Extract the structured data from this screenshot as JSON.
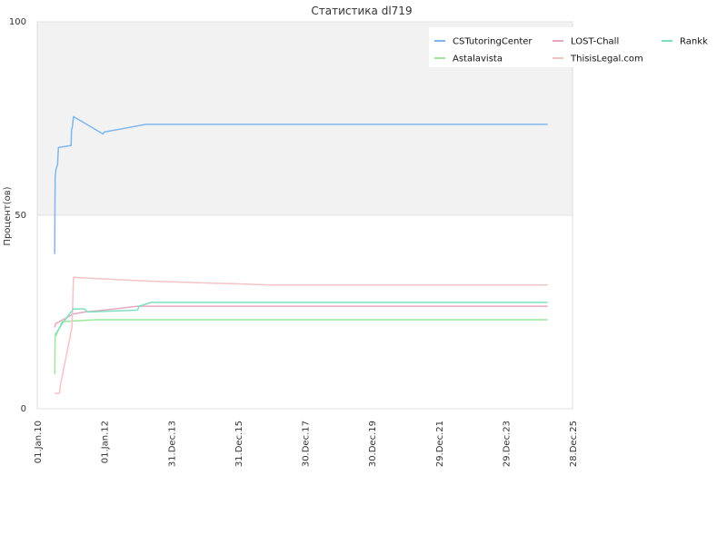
{
  "chart_data": {
    "type": "line",
    "title": "Статистика dl719",
    "ylabel": "Процент(ов)",
    "ylim": [
      0,
      100
    ],
    "yticks": [
      "0",
      "50",
      "100"
    ],
    "xlim": [
      "2010-01-01",
      "2025-12-28"
    ],
    "xticks": [
      {
        "date": "2010-01-01",
        "label": "01.Jan.10"
      },
      {
        "date": "2012-01-01",
        "label": "01.Jan.12"
      },
      {
        "date": "2013-12-31",
        "label": "31.Dec.13"
      },
      {
        "date": "2015-12-31",
        "label": "31.Dec.15"
      },
      {
        "date": "2017-12-30",
        "label": "30.Dec.17"
      },
      {
        "date": "2019-12-30",
        "label": "30.Dec.19"
      },
      {
        "date": "2021-12-29",
        "label": "29.Dec.21"
      },
      {
        "date": "2023-12-29",
        "label": "29.Dec.23"
      },
      {
        "date": "2025-12-28",
        "label": "28.Dec.25"
      }
    ],
    "shaded_band": {
      "y_from": 50,
      "y_to": 100,
      "color": "#f2f2f2"
    },
    "legend_position": "top-right",
    "series": [
      {
        "name": "CSTutoringCenter",
        "color": "#7db7ee",
        "points": [
          [
            "2010-07-10",
            40
          ],
          [
            "2010-07-12",
            50
          ],
          [
            "2010-07-15",
            60
          ],
          [
            "2010-07-25",
            62
          ],
          [
            "2010-08-10",
            63
          ],
          [
            "2010-08-20",
            67.5
          ],
          [
            "2011-01-05",
            68
          ],
          [
            "2011-01-10",
            72
          ],
          [
            "2011-01-20",
            73
          ],
          [
            "2011-02-01",
            75.5
          ],
          [
            "2011-12-20",
            71
          ],
          [
            "2012-01-01",
            71.5
          ],
          [
            "2013-04-01",
            73.5
          ],
          [
            "2025-04-01",
            73.5
          ]
        ]
      },
      {
        "name": "Astalavista",
        "color": "#9be89b",
        "points": [
          [
            "2010-07-10",
            9
          ],
          [
            "2010-07-15",
            18.5
          ],
          [
            "2010-10-01",
            22.5
          ],
          [
            "2011-05-01",
            22.8
          ],
          [
            "2011-10-01",
            23
          ],
          [
            "2025-04-01",
            23
          ]
        ]
      },
      {
        "name": "LOST-Chall",
        "color": "#e7a7c2",
        "points": [
          [
            "2010-07-10",
            21
          ],
          [
            "2010-07-20",
            22
          ],
          [
            "2011-02-01",
            24.5
          ],
          [
            "2011-06-01",
            25
          ],
          [
            "2012-01-01",
            25.5
          ],
          [
            "2013-01-01",
            26.5
          ],
          [
            "2025-04-01",
            26.5
          ]
        ]
      },
      {
        "name": "ThisisLegal.com",
        "color": "#f4c3c6",
        "points": [
          [
            "2010-07-10",
            4
          ],
          [
            "2010-09-01",
            4
          ],
          [
            "2010-09-10",
            6
          ],
          [
            "2011-01-15",
            21
          ],
          [
            "2011-02-01",
            34
          ],
          [
            "2011-06-01",
            33.8
          ],
          [
            "2013-04-01",
            33
          ],
          [
            "2017-01-01",
            32
          ],
          [
            "2025-04-01",
            32
          ]
        ]
      },
      {
        "name": "Rankk",
        "color": "#7fe0bf",
        "points": [
          [
            "2010-07-10",
            19
          ],
          [
            "2010-10-01",
            22
          ],
          [
            "2011-02-01",
            25.8
          ],
          [
            "2011-06-01",
            25.8
          ],
          [
            "2011-07-01",
            25
          ],
          [
            "2012-06-01",
            25.3
          ],
          [
            "2013-01-01",
            25.5
          ],
          [
            "2013-01-15",
            26.5
          ],
          [
            "2013-06-01",
            27.5
          ],
          [
            "2025-04-01",
            27.5
          ]
        ]
      }
    ]
  }
}
